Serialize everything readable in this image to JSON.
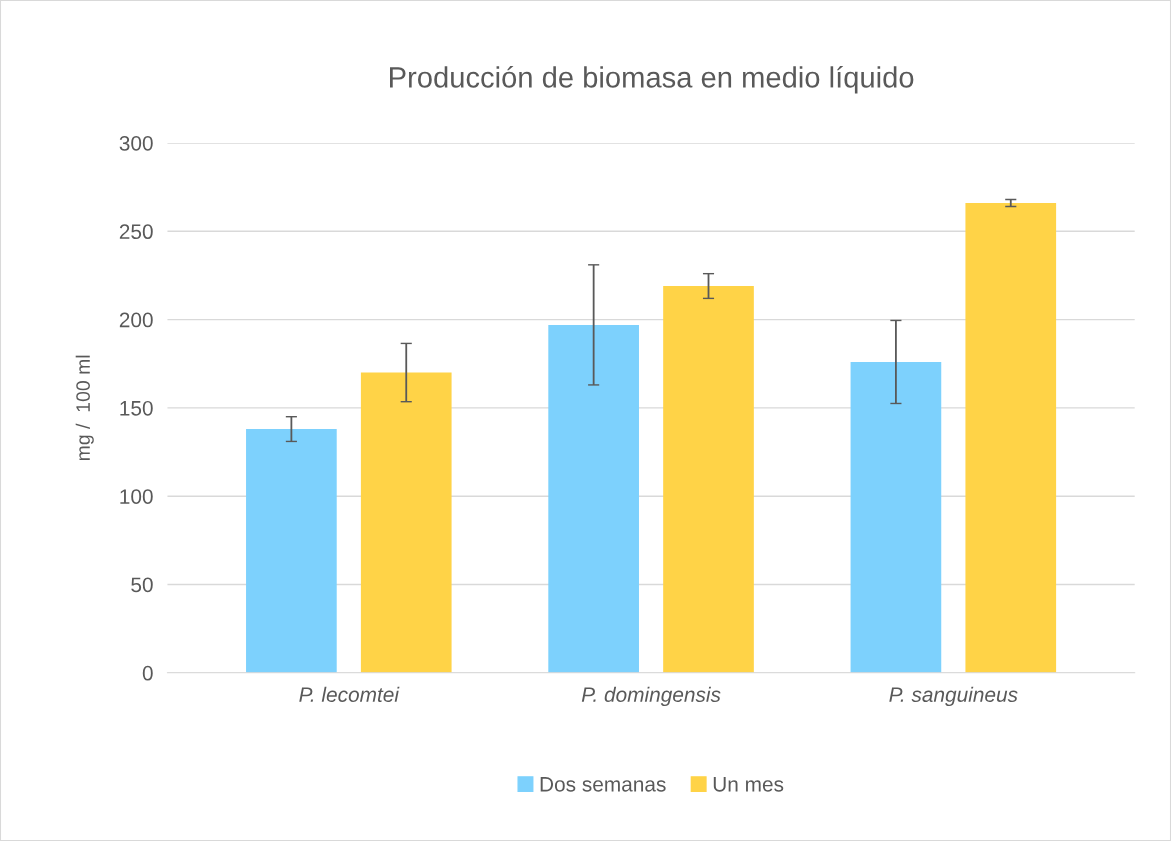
{
  "chart_data": {
    "type": "bar",
    "title": "Producción de biomasa en medio líquido",
    "ylabel": "mg /  100 ml",
    "categories": [
      "P. lecomtei",
      "P. domingensis",
      "P. sanguineus"
    ],
    "series": [
      {
        "name": "Dos semanas",
        "color": "#7dd1fd",
        "values": [
          138,
          197,
          176
        ],
        "errors": [
          7,
          34,
          23.5
        ]
      },
      {
        "name": "Un mes",
        "color": "#ffd347",
        "values": [
          170,
          219,
          266
        ],
        "errors": [
          16.5,
          7,
          2
        ]
      }
    ],
    "ylim": [
      0,
      300
    ],
    "yticks": [
      0,
      50,
      100,
      150,
      200,
      250,
      300
    ],
    "grid": "y",
    "legend": "bottom"
  }
}
